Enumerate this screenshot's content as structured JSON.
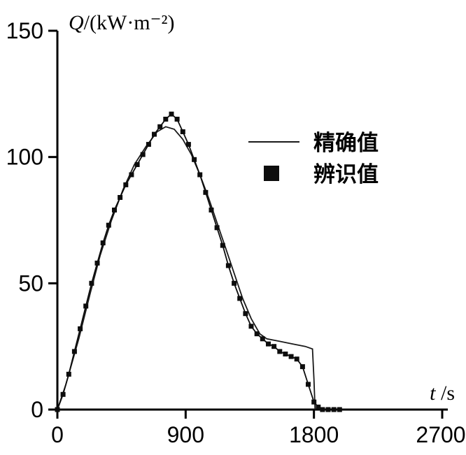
{
  "chart_data": {
    "type": "line",
    "title": "",
    "ylabel_italic": "Q",
    "ylabel_rest": "/(kW·m⁻²)",
    "xlabel_italic": "t",
    "xlabel_rest": "/s",
    "xlim": [
      0,
      2700
    ],
    "ylim": [
      0,
      150
    ],
    "x_ticks": [
      0,
      900,
      1800,
      2700
    ],
    "y_ticks": [
      0,
      50,
      100,
      150
    ],
    "grid": false,
    "legend_position": "upper-right-inside",
    "colors": {
      "axis": "#000000",
      "exact_line": "#1a1a1a",
      "identified": "#0d0d0d",
      "background": "#ffffff"
    },
    "legend": [
      {
        "marker": "line",
        "label": "精确值"
      },
      {
        "marker": "square",
        "label": "辨识值"
      }
    ],
    "series": [
      {
        "name": "精确值",
        "style": "thin-line",
        "points": [
          [
            0,
            0
          ],
          [
            60,
            10
          ],
          [
            150,
            28
          ],
          [
            230,
            46
          ],
          [
            300,
            61
          ],
          [
            380,
            75
          ],
          [
            460,
            87
          ],
          [
            540,
            97
          ],
          [
            620,
            104
          ],
          [
            700,
            110
          ],
          [
            760,
            112
          ],
          [
            820,
            111
          ],
          [
            880,
            107
          ],
          [
            940,
            101
          ],
          [
            1000,
            93
          ],
          [
            1060,
            84
          ],
          [
            1120,
            74
          ],
          [
            1180,
            64
          ],
          [
            1240,
            54
          ],
          [
            1300,
            44
          ],
          [
            1360,
            36
          ],
          [
            1420,
            30
          ],
          [
            1470,
            28
          ],
          [
            1560,
            27
          ],
          [
            1650,
            26
          ],
          [
            1740,
            25
          ],
          [
            1790,
            24
          ],
          [
            1800,
            12
          ],
          [
            1808,
            0
          ]
        ]
      },
      {
        "name": "辨识值",
        "style": "square-markers",
        "points": [
          [
            0,
            0
          ],
          [
            40,
            6
          ],
          [
            80,
            14
          ],
          [
            120,
            23
          ],
          [
            160,
            32
          ],
          [
            200,
            41
          ],
          [
            240,
            50
          ],
          [
            280,
            58
          ],
          [
            320,
            66
          ],
          [
            360,
            73
          ],
          [
            400,
            79
          ],
          [
            440,
            84
          ],
          [
            480,
            89
          ],
          [
            520,
            93
          ],
          [
            560,
            97
          ],
          [
            600,
            101
          ],
          [
            640,
            105
          ],
          [
            680,
            109
          ],
          [
            720,
            112
          ],
          [
            760,
            115
          ],
          [
            800,
            117
          ],
          [
            840,
            115
          ],
          [
            880,
            110
          ],
          [
            920,
            105
          ],
          [
            960,
            99
          ],
          [
            1000,
            93
          ],
          [
            1040,
            86
          ],
          [
            1080,
            79
          ],
          [
            1120,
            72
          ],
          [
            1160,
            65
          ],
          [
            1200,
            57
          ],
          [
            1240,
            50
          ],
          [
            1280,
            44
          ],
          [
            1320,
            38
          ],
          [
            1360,
            33
          ],
          [
            1400,
            30
          ],
          [
            1440,
            28
          ],
          [
            1480,
            26
          ],
          [
            1520,
            25
          ],
          [
            1560,
            23
          ],
          [
            1600,
            22
          ],
          [
            1640,
            21
          ],
          [
            1680,
            20
          ],
          [
            1720,
            17
          ],
          [
            1760,
            10
          ],
          [
            1800,
            3
          ],
          [
            1830,
            1
          ],
          [
            1860,
            0
          ],
          [
            1900,
            0
          ],
          [
            1940,
            0
          ],
          [
            1980,
            0
          ]
        ]
      }
    ]
  }
}
